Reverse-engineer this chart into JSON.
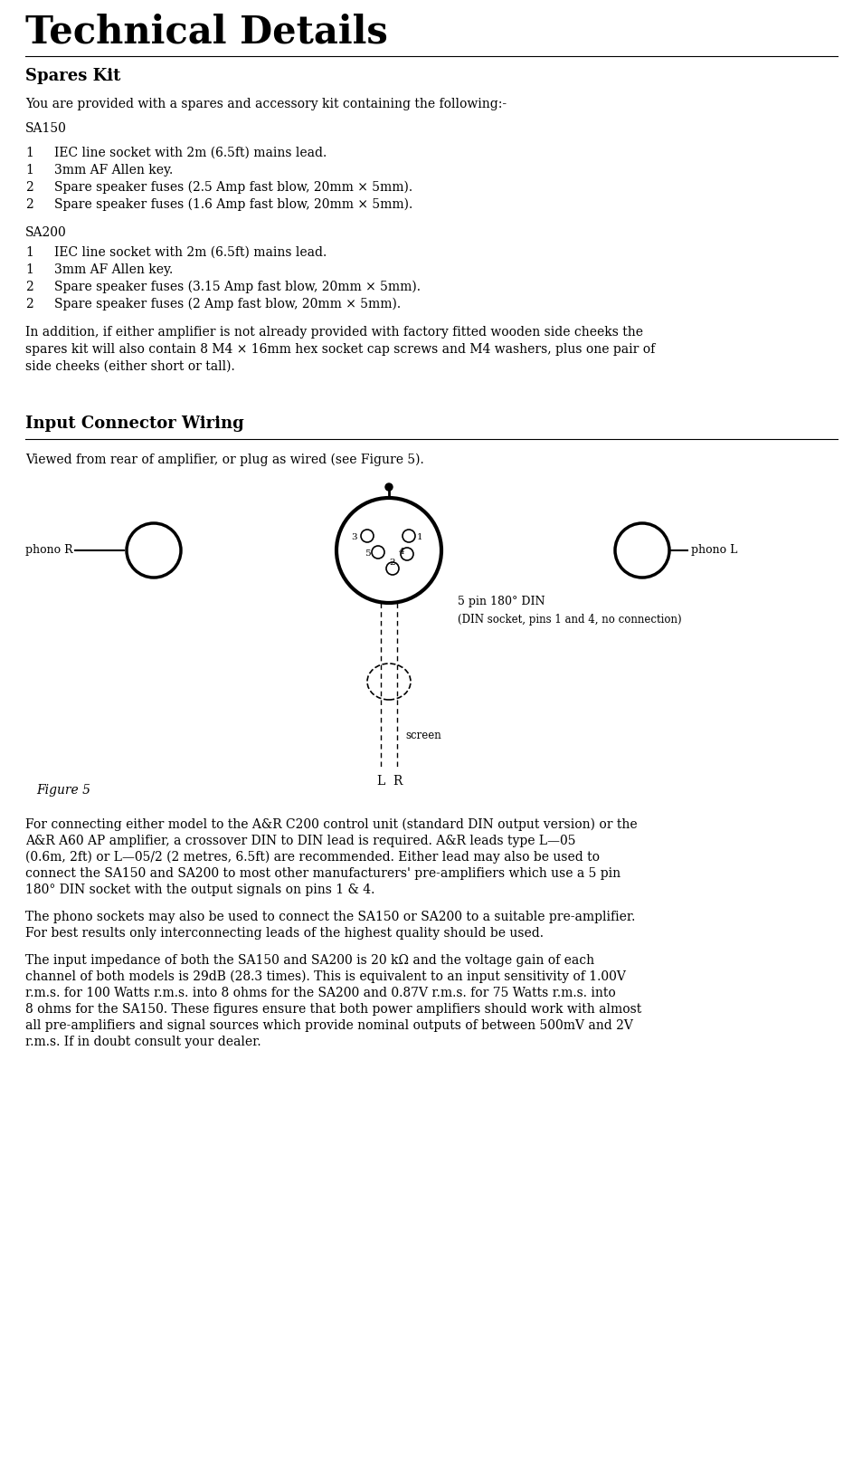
{
  "title": "Technical Details",
  "bg_color": "#ffffff",
  "text_color": "#000000",
  "section1_title": "Spares Kit",
  "intro_text": "You are provided with a spares and accessory kit containing the following:-",
  "sa150_label": "SA150",
  "sa150_items": [
    [
      "1",
      "IEC line socket with 2m (6.5ft) mains lead."
    ],
    [
      "1",
      "3mm AF Allen key."
    ],
    [
      "2",
      "Spare speaker fuses (2.5 Amp fast blow, 20mm × 5mm)."
    ],
    [
      "2",
      "Spare speaker fuses (1.6 Amp fast blow, 20mm × 5mm)."
    ]
  ],
  "sa200_label": "SA200",
  "sa200_items": [
    [
      "1",
      "IEC line socket with 2m (6.5ft) mains lead."
    ],
    [
      "1",
      "3mm AF Allen key."
    ],
    [
      "2",
      "Spare speaker fuses (3.15 Amp fast blow, 20mm × 5mm)."
    ],
    [
      "2",
      "Spare speaker fuses (2 Amp fast blow, 20mm × 5mm)."
    ]
  ],
  "addition_lines": [
    "In addition, if either amplifier is not already provided with factory fitted wooden side cheeks the",
    "spares kit will also contain 8 M4 × 16mm hex socket cap screws and M4 washers, plus one pair of",
    "side cheeks (either short or tall)."
  ],
  "section2_title": "Input Connector Wiring",
  "viewed_text": "Viewed from rear of amplifier, or plug as wired (see Figure 5).",
  "din_label": "5 pin 180° DIN",
  "din_sub": "(DIN socket, pins 1 and 4, no connection)",
  "screen_label": "screen",
  "figure_label": "Figure 5",
  "phono_r_label": "phono R",
  "phono_l_label": "phono L",
  "body1_lines": [
    "For connecting either model to the A&R C200 control unit (standard DIN output version) or the",
    "A&R A60 AP amplifier, a crossover DIN to DIN lead is required. A&R leads type L—05",
    "(0.6m, 2ft) or L—05/2 (2 metres, 6.5ft) are recommended. Either lead may also be used to",
    "connect the SA150 and SA200 to most other manufacturers' pre-amplifiers which use a 5 pin",
    "180° DIN socket with the output signals on pins 1 & 4."
  ],
  "body2_lines": [
    "The phono sockets may also be used to connect the SA150 or SA200 to a suitable pre-amplifier.",
    "For best results only interconnecting leads of the highest quality should be used."
  ],
  "body3_lines": [
    "The input impedance of both the SA150 and SA200 is 20 kΩ and the voltage gain of each",
    "channel of both models is 29dB (28.3 times). This is equivalent to an input sensitivity of 1.00V",
    "r.m.s. for 100 Watts r.m.s. into 8 ohms for the SA200 and 0.87V r.m.s. for 75 Watts r.m.s. into",
    "8 ohms for the SA150. These figures ensure that both power amplifiers should work with almost",
    "all pre-amplifiers and signal sources which provide nominal outputs of between 500mV and 2V",
    "r.m.s. If in doubt consult your dealer."
  ]
}
